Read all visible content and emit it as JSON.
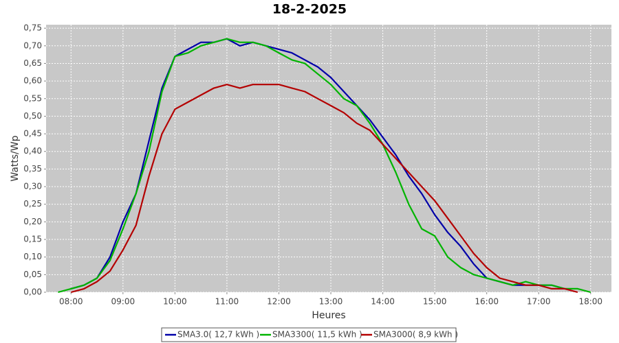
{
  "chart_data": {
    "type": "line",
    "title": "18-2-2025",
    "x_label": "Heures",
    "y_label": "Watts/Wp",
    "x": [
      7.75,
      8.0,
      8.25,
      8.5,
      8.75,
      9.0,
      9.25,
      9.5,
      9.75,
      10.0,
      10.25,
      10.5,
      10.75,
      11.0,
      11.25,
      11.5,
      11.75,
      12.0,
      12.25,
      12.5,
      12.75,
      13.0,
      13.25,
      13.5,
      13.75,
      14.0,
      14.25,
      14.5,
      14.75,
      15.0,
      15.25,
      15.5,
      15.75,
      16.0,
      16.25,
      16.5,
      16.75,
      17.0,
      17.25,
      17.5,
      17.75,
      18.0
    ],
    "series": [
      {
        "name": "SMA3.0( 12,7 kWh )",
        "color": "#0000a8",
        "values": [
          null,
          0.01,
          0.02,
          0.04,
          0.1,
          0.2,
          0.28,
          0.43,
          0.58,
          0.67,
          0.69,
          0.71,
          0.71,
          0.72,
          0.7,
          0.71,
          0.7,
          0.69,
          0.68,
          0.66,
          0.64,
          0.61,
          0.57,
          0.53,
          0.49,
          0.44,
          0.39,
          0.33,
          0.28,
          0.22,
          0.17,
          0.13,
          0.08,
          0.04,
          0.03,
          0.02,
          0.02,
          0.02,
          0.02,
          0.01,
          null,
          null
        ]
      },
      {
        "name": "SMA3300( 11,5 kWh )",
        "color": "#00b400",
        "values": [
          0,
          0.01,
          0.02,
          0.04,
          0.09,
          0.18,
          0.28,
          0.4,
          0.57,
          0.67,
          0.68,
          0.7,
          0.71,
          0.72,
          0.71,
          0.71,
          0.7,
          0.68,
          0.66,
          0.65,
          0.62,
          0.59,
          0.55,
          0.53,
          0.48,
          0.42,
          0.34,
          0.25,
          0.18,
          0.16,
          0.1,
          0.07,
          0.05,
          0.04,
          0.03,
          0.02,
          0.03,
          0.02,
          0.02,
          0.01,
          0.01,
          0
        ]
      },
      {
        "name": "SMA3000( 8,9 kWh )",
        "color": "#b40000",
        "values": [
          null,
          0,
          0.01,
          0.03,
          0.06,
          0.12,
          0.19,
          0.33,
          0.45,
          0.52,
          0.54,
          0.56,
          0.58,
          0.59,
          0.58,
          0.59,
          0.59,
          0.59,
          0.58,
          0.57,
          0.55,
          0.53,
          0.51,
          0.48,
          0.46,
          0.42,
          0.38,
          0.34,
          0.3,
          0.26,
          0.21,
          0.16,
          0.11,
          0.07,
          0.04,
          0.03,
          0.02,
          0.02,
          0.01,
          0.01,
          0,
          null
        ]
      }
    ],
    "xlim": [
      7.52,
      18.4
    ],
    "ylim": [
      0,
      0.76
    ],
    "xticks": [
      {
        "value": 8,
        "label": "08:00"
      },
      {
        "value": 9,
        "label": "09:00"
      },
      {
        "value": 10,
        "label": "10:00"
      },
      {
        "value": 11,
        "label": "11:00"
      },
      {
        "value": 12,
        "label": "12:00"
      },
      {
        "value": 13,
        "label": "13:00"
      },
      {
        "value": 14,
        "label": "14:00"
      },
      {
        "value": 15,
        "label": "15:00"
      },
      {
        "value": 16,
        "label": "16:00"
      },
      {
        "value": 17,
        "label": "17:00"
      },
      {
        "value": 18,
        "label": "18:00"
      }
    ],
    "yticks": [
      {
        "value": 0,
        "label": "0,00"
      },
      {
        "value": 0.05,
        "label": "0,05"
      },
      {
        "value": 0.1,
        "label": "0,10"
      },
      {
        "value": 0.15,
        "label": "0,15"
      },
      {
        "value": 0.2,
        "label": "0,20"
      },
      {
        "value": 0.25,
        "label": "0,25"
      },
      {
        "value": 0.3,
        "label": "0,30"
      },
      {
        "value": 0.35,
        "label": "0,35"
      },
      {
        "value": 0.4,
        "label": "0,40"
      },
      {
        "value": 0.45,
        "label": "0,45"
      },
      {
        "value": 0.5,
        "label": "0,50"
      },
      {
        "value": 0.55,
        "label": "0,55"
      },
      {
        "value": 0.6,
        "label": "0,60"
      },
      {
        "value": 0.65,
        "label": "0,65"
      },
      {
        "value": 0.7,
        "label": "0,70"
      },
      {
        "value": 0.75,
        "label": "0,75"
      }
    ],
    "grid": true
  }
}
